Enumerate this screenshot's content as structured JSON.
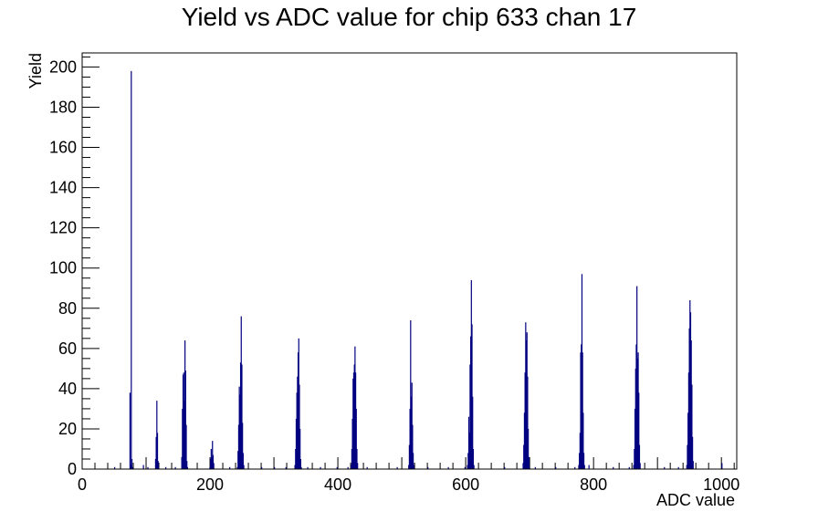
{
  "chart_data": {
    "type": "histogram",
    "title": "Yield vs ADC value for chip 633 chan 17",
    "xlabel": "ADC value",
    "ylabel": "Yield",
    "xlim": [
      0,
      1024
    ],
    "ylim": [
      0,
      207
    ],
    "x_ticks": [
      0,
      200,
      400,
      600,
      800,
      1000
    ],
    "y_ticks": [
      0,
      20,
      40,
      60,
      80,
      100,
      120,
      140,
      160,
      180,
      200
    ],
    "line_color": "#000080",
    "grid": false,
    "legend": "none",
    "peaks": [
      {
        "center": 76,
        "bins": [
          [
            74,
            38
          ],
          [
            75,
            2
          ],
          [
            76,
            198
          ],
          [
            77,
            5
          ],
          [
            78,
            1
          ]
        ]
      },
      {
        "center": 117,
        "bins": [
          [
            114,
            5
          ],
          [
            115,
            16
          ],
          [
            116,
            34
          ],
          [
            117,
            18
          ],
          [
            118,
            4
          ],
          [
            119,
            1
          ]
        ]
      },
      {
        "center": 160,
        "bins": [
          [
            155,
            6
          ],
          [
            156,
            30
          ],
          [
            157,
            47
          ],
          [
            158,
            48
          ],
          [
            159,
            34
          ],
          [
            160,
            64
          ],
          [
            161,
            49
          ],
          [
            162,
            22
          ],
          [
            163,
            4
          ],
          [
            164,
            1
          ]
        ]
      },
      {
        "center": 203,
        "bins": [
          [
            199,
            1
          ],
          [
            200,
            5
          ],
          [
            201,
            10
          ],
          [
            202,
            6
          ],
          [
            203,
            14
          ],
          [
            204,
            7
          ],
          [
            205,
            3
          ]
        ]
      },
      {
        "center": 248,
        "bins": [
          [
            242,
            1
          ],
          [
            243,
            9
          ],
          [
            244,
            22
          ],
          [
            245,
            41
          ],
          [
            246,
            37
          ],
          [
            247,
            53
          ],
          [
            248,
            76
          ],
          [
            249,
            52
          ],
          [
            250,
            23
          ],
          [
            251,
            8
          ],
          [
            252,
            2
          ]
        ]
      },
      {
        "center": 338,
        "bins": [
          [
            332,
            2
          ],
          [
            333,
            10
          ],
          [
            334,
            25
          ],
          [
            335,
            38
          ],
          [
            336,
            46
          ],
          [
            337,
            58
          ],
          [
            338,
            65
          ],
          [
            339,
            42
          ],
          [
            340,
            20
          ],
          [
            341,
            5
          ],
          [
            342,
            1
          ]
        ]
      },
      {
        "center": 427,
        "bins": [
          [
            420,
            2
          ],
          [
            421,
            10
          ],
          [
            422,
            25
          ],
          [
            423,
            45
          ],
          [
            424,
            48
          ],
          [
            425,
            52
          ],
          [
            426,
            61
          ],
          [
            427,
            48
          ],
          [
            428,
            30
          ],
          [
            429,
            10
          ],
          [
            430,
            3
          ]
        ]
      },
      {
        "center": 515,
        "bins": [
          [
            510,
            2
          ],
          [
            511,
            12
          ],
          [
            512,
            30
          ],
          [
            513,
            74
          ],
          [
            514,
            36
          ],
          [
            515,
            43
          ],
          [
            516,
            22
          ],
          [
            517,
            8
          ],
          [
            518,
            2
          ]
        ]
      },
      {
        "center": 609,
        "bins": [
          [
            602,
            2
          ],
          [
            603,
            8
          ],
          [
            604,
            26
          ],
          [
            605,
            18
          ],
          [
            606,
            52
          ],
          [
            607,
            66
          ],
          [
            608,
            94
          ],
          [
            609,
            72
          ],
          [
            610,
            36
          ],
          [
            611,
            10
          ],
          [
            612,
            2
          ]
        ]
      },
      {
        "center": 694,
        "bins": [
          [
            689,
            3
          ],
          [
            690,
            12
          ],
          [
            691,
            28
          ],
          [
            692,
            48
          ],
          [
            693,
            73
          ],
          [
            694,
            64
          ],
          [
            695,
            68
          ],
          [
            696,
            46
          ],
          [
            697,
            20
          ],
          [
            698,
            6
          ],
          [
            699,
            1
          ]
        ]
      },
      {
        "center": 783,
        "bins": [
          [
            776,
            2
          ],
          [
            777,
            8
          ],
          [
            778,
            18
          ],
          [
            779,
            58
          ],
          [
            780,
            62
          ],
          [
            781,
            97
          ],
          [
            782,
            58
          ],
          [
            783,
            28
          ],
          [
            784,
            8
          ],
          [
            785,
            2
          ]
        ]
      },
      {
        "center": 869,
        "bins": [
          [
            862,
            2
          ],
          [
            863,
            10
          ],
          [
            864,
            30
          ],
          [
            865,
            50
          ],
          [
            866,
            62
          ],
          [
            867,
            91
          ],
          [
            868,
            55
          ],
          [
            869,
            58
          ],
          [
            870,
            38
          ],
          [
            871,
            12
          ],
          [
            872,
            3
          ]
        ]
      },
      {
        "center": 952,
        "bins": [
          [
            945,
            2
          ],
          [
            946,
            12
          ],
          [
            947,
            28
          ],
          [
            948,
            48
          ],
          [
            949,
            70
          ],
          [
            950,
            84
          ],
          [
            951,
            78
          ],
          [
            952,
            64
          ],
          [
            953,
            42
          ],
          [
            954,
            16
          ],
          [
            955,
            4
          ]
        ]
      }
    ],
    "isolated_bins": [
      [
        50,
        1
      ],
      [
        95,
        2
      ],
      [
        102,
        1
      ],
      [
        130,
        1
      ],
      [
        145,
        1
      ],
      [
        230,
        1
      ],
      [
        280,
        1
      ],
      [
        300,
        1
      ],
      [
        318,
        1
      ],
      [
        352,
        1
      ],
      [
        372,
        1
      ],
      [
        398,
        1
      ],
      [
        415,
        1
      ],
      [
        445,
        1
      ],
      [
        492,
        1
      ],
      [
        540,
        1
      ],
      [
        572,
        1
      ],
      [
        598,
        1
      ],
      [
        660,
        1
      ],
      [
        708,
        1
      ],
      [
        740,
        1
      ],
      [
        770,
        1
      ],
      [
        792,
        2
      ],
      [
        830,
        1
      ],
      [
        855,
        1
      ],
      [
        910,
        1
      ],
      [
        932,
        1
      ],
      [
        1000,
        3
      ]
    ]
  }
}
